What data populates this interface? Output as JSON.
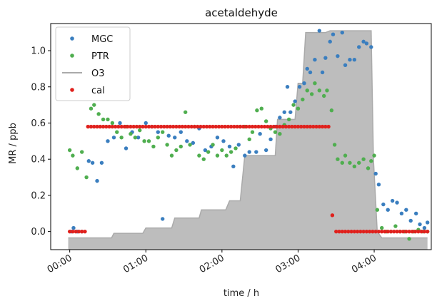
{
  "chart_data": {
    "type": "scatter",
    "title": "acetaldehyde",
    "xlabel": "time / h",
    "ylabel": "MR / ppb",
    "xlim": [
      -0.25,
      4.75
    ],
    "ylim": [
      -0.1,
      1.15
    ],
    "x_tick_values": [
      0,
      1,
      2,
      3,
      4
    ],
    "x_tick_labels": [
      "00:00",
      "01:00",
      "02:00",
      "03:00",
      "04:00"
    ],
    "y_tick_values": [
      0.0,
      0.2,
      0.4,
      0.6,
      0.8,
      1.0
    ],
    "y_tick_labels": [
      "0.0",
      "0.2",
      "0.4",
      "0.6",
      "0.8",
      "1.0"
    ],
    "legend_position": "upper-left",
    "series": [
      {
        "name": "MGC",
        "kind": "scatter",
        "color": "#3a7ebf",
        "points": [
          [
            0.02,
            0.0
          ],
          [
            0.05,
            0.02
          ],
          [
            0.1,
            0.0
          ],
          [
            0.16,
            0.0
          ],
          [
            0.25,
            0.39
          ],
          [
            0.3,
            0.38
          ],
          [
            0.36,
            0.28
          ],
          [
            0.42,
            0.38
          ],
          [
            0.5,
            0.5
          ],
          [
            0.58,
            0.52
          ],
          [
            0.66,
            0.6
          ],
          [
            0.74,
            0.46
          ],
          [
            0.82,
            0.55
          ],
          [
            0.9,
            0.52
          ],
          [
            1.0,
            0.6
          ],
          [
            1.08,
            0.58
          ],
          [
            1.16,
            0.55
          ],
          [
            1.22,
            0.07
          ],
          [
            1.3,
            0.53
          ],
          [
            1.38,
            0.52
          ],
          [
            1.46,
            0.55
          ],
          [
            1.54,
            0.5
          ],
          [
            1.62,
            0.49
          ],
          [
            1.7,
            0.57
          ],
          [
            1.78,
            0.45
          ],
          [
            1.86,
            0.47
          ],
          [
            1.94,
            0.52
          ],
          [
            2.02,
            0.5
          ],
          [
            2.1,
            0.47
          ],
          [
            2.15,
            0.36
          ],
          [
            2.22,
            0.48
          ],
          [
            2.3,
            0.42
          ],
          [
            2.36,
            0.44
          ],
          [
            2.45,
            0.44
          ],
          [
            2.5,
            0.54
          ],
          [
            2.58,
            0.45
          ],
          [
            2.64,
            0.51
          ],
          [
            2.7,
            0.58
          ],
          [
            2.76,
            0.63
          ],
          [
            2.82,
            0.66
          ],
          [
            2.86,
            0.8
          ],
          [
            2.9,
            0.66
          ],
          [
            2.96,
            0.72
          ],
          [
            3.02,
            0.8
          ],
          [
            3.08,
            0.82
          ],
          [
            3.12,
            0.9
          ],
          [
            3.16,
            0.88
          ],
          [
            3.22,
            0.95
          ],
          [
            3.28,
            1.11
          ],
          [
            3.32,
            0.88
          ],
          [
            3.36,
            0.96
          ],
          [
            3.42,
            1.05
          ],
          [
            3.46,
            1.09
          ],
          [
            3.52,
            0.97
          ],
          [
            3.58,
            1.1
          ],
          [
            3.62,
            0.92
          ],
          [
            3.68,
            0.95
          ],
          [
            3.74,
            0.95
          ],
          [
            3.8,
            1.02
          ],
          [
            3.86,
            1.05
          ],
          [
            3.9,
            1.04
          ],
          [
            3.96,
            1.02
          ],
          [
            4.02,
            0.32
          ],
          [
            4.06,
            0.26
          ],
          [
            4.12,
            0.15
          ],
          [
            4.18,
            0.12
          ],
          [
            4.24,
            0.17
          ],
          [
            4.3,
            0.16
          ],
          [
            4.36,
            0.1
          ],
          [
            4.42,
            0.12
          ],
          [
            4.48,
            0.06
          ],
          [
            4.55,
            0.1
          ],
          [
            4.6,
            0.04
          ],
          [
            4.66,
            0.02
          ],
          [
            4.7,
            0.05
          ]
        ]
      },
      {
        "name": "PTR",
        "kind": "scatter",
        "color": "#4fae4f",
        "points": [
          [
            0.0,
            0.45
          ],
          [
            0.04,
            0.42
          ],
          [
            0.1,
            0.35
          ],
          [
            0.16,
            0.44
          ],
          [
            0.22,
            0.3
          ],
          [
            0.28,
            0.68
          ],
          [
            0.32,
            0.7
          ],
          [
            0.38,
            0.65
          ],
          [
            0.44,
            0.62
          ],
          [
            0.5,
            0.62
          ],
          [
            0.56,
            0.6
          ],
          [
            0.62,
            0.55
          ],
          [
            0.68,
            0.52
          ],
          [
            0.74,
            0.58
          ],
          [
            0.8,
            0.54
          ],
          [
            0.86,
            0.52
          ],
          [
            0.92,
            0.56
          ],
          [
            0.98,
            0.5
          ],
          [
            1.04,
            0.5
          ],
          [
            1.1,
            0.47
          ],
          [
            1.16,
            0.52
          ],
          [
            1.22,
            0.55
          ],
          [
            1.28,
            0.48
          ],
          [
            1.34,
            0.42
          ],
          [
            1.4,
            0.45
          ],
          [
            1.46,
            0.47
          ],
          [
            1.52,
            0.66
          ],
          [
            1.58,
            0.48
          ],
          [
            1.64,
            0.58
          ],
          [
            1.7,
            0.42
          ],
          [
            1.76,
            0.4
          ],
          [
            1.82,
            0.44
          ],
          [
            1.88,
            0.48
          ],
          [
            1.94,
            0.42
          ],
          [
            2.0,
            0.45
          ],
          [
            2.06,
            0.42
          ],
          [
            2.12,
            0.44
          ],
          [
            2.18,
            0.46
          ],
          [
            2.24,
            0.58
          ],
          [
            2.3,
            0.58
          ],
          [
            2.36,
            0.51
          ],
          [
            2.4,
            0.55
          ],
          [
            2.46,
            0.67
          ],
          [
            2.52,
            0.68
          ],
          [
            2.58,
            0.61
          ],
          [
            2.64,
            0.57
          ],
          [
            2.7,
            0.55
          ],
          [
            2.76,
            0.54
          ],
          [
            2.82,
            0.59
          ],
          [
            2.88,
            0.62
          ],
          [
            2.94,
            0.7
          ],
          [
            3.0,
            0.68
          ],
          [
            3.06,
            0.73
          ],
          [
            3.12,
            0.78
          ],
          [
            3.18,
            0.76
          ],
          [
            3.22,
            0.82
          ],
          [
            3.28,
            0.78
          ],
          [
            3.34,
            0.75
          ],
          [
            3.38,
            0.78
          ],
          [
            3.44,
            0.67
          ],
          [
            3.48,
            0.48
          ],
          [
            3.52,
            0.4
          ],
          [
            3.58,
            0.38
          ],
          [
            3.62,
            0.42
          ],
          [
            3.68,
            0.38
          ],
          [
            3.74,
            0.36
          ],
          [
            3.8,
            0.38
          ],
          [
            3.86,
            0.4
          ],
          [
            3.92,
            0.35
          ],
          [
            3.96,
            0.39
          ],
          [
            4.0,
            0.42
          ],
          [
            4.04,
            0.12
          ],
          [
            4.1,
            0.02
          ],
          [
            4.16,
            0.0
          ],
          [
            4.22,
            0.0
          ],
          [
            4.28,
            0.03
          ],
          [
            4.34,
            0.0
          ],
          [
            4.4,
            0.0
          ],
          [
            4.46,
            -0.04
          ],
          [
            4.52,
            0.0
          ],
          [
            4.58,
            0.01
          ],
          [
            4.64,
            0.0
          ],
          [
            4.7,
            0.0
          ]
        ]
      },
      {
        "name": "O3",
        "kind": "area",
        "color": "#aaaaaa",
        "fill": "#bdbdbd",
        "steps": [
          [
            -0.02,
            -0.035
          ],
          [
            0.55,
            -0.035
          ],
          [
            0.58,
            -0.01
          ],
          [
            0.96,
            -0.01
          ],
          [
            1.0,
            0.02
          ],
          [
            1.34,
            0.02
          ],
          [
            1.38,
            0.075
          ],
          [
            1.7,
            0.075
          ],
          [
            1.73,
            0.12
          ],
          [
            2.05,
            0.12
          ],
          [
            2.1,
            0.17
          ],
          [
            2.24,
            0.17
          ],
          [
            2.3,
            0.42
          ],
          [
            2.7,
            0.42
          ],
          [
            2.73,
            0.62
          ],
          [
            2.96,
            0.62
          ],
          [
            3.0,
            0.82
          ],
          [
            3.06,
            0.82
          ],
          [
            3.1,
            1.1
          ],
          [
            3.36,
            1.1
          ],
          [
            3.42,
            1.11
          ],
          [
            3.96,
            1.11
          ],
          [
            3.99,
            0.4
          ],
          [
            4.04,
            0.0
          ],
          [
            4.1,
            -0.035
          ],
          [
            4.7,
            -0.035
          ]
        ]
      },
      {
        "name": "cal",
        "kind": "scatter",
        "color": "#e0201c",
        "points": [
          [
            0.0,
            0.0
          ],
          [
            0.04,
            0.0
          ],
          [
            0.08,
            0.0
          ],
          [
            0.12,
            0.0
          ],
          [
            0.16,
            0.0
          ],
          [
            0.2,
            0.0
          ],
          [
            0.24,
            0.58
          ],
          [
            0.28,
            0.58
          ],
          [
            0.32,
            0.58
          ],
          [
            0.36,
            0.58
          ],
          [
            0.4,
            0.58
          ],
          [
            0.44,
            0.58
          ],
          [
            0.48,
            0.58
          ],
          [
            0.52,
            0.58
          ],
          [
            0.56,
            0.58
          ],
          [
            0.6,
            0.58
          ],
          [
            0.64,
            0.58
          ],
          [
            0.68,
            0.58
          ],
          [
            0.72,
            0.58
          ],
          [
            0.76,
            0.58
          ],
          [
            0.8,
            0.58
          ],
          [
            0.84,
            0.58
          ],
          [
            0.88,
            0.58
          ],
          [
            0.92,
            0.58
          ],
          [
            0.96,
            0.58
          ],
          [
            1.0,
            0.58
          ],
          [
            1.04,
            0.58
          ],
          [
            1.08,
            0.58
          ],
          [
            1.12,
            0.58
          ],
          [
            1.16,
            0.58
          ],
          [
            1.2,
            0.58
          ],
          [
            1.24,
            0.58
          ],
          [
            1.28,
            0.58
          ],
          [
            1.32,
            0.58
          ],
          [
            1.36,
            0.58
          ],
          [
            1.4,
            0.58
          ],
          [
            1.44,
            0.58
          ],
          [
            1.48,
            0.58
          ],
          [
            1.52,
            0.58
          ],
          [
            1.56,
            0.58
          ],
          [
            1.6,
            0.58
          ],
          [
            1.64,
            0.58
          ],
          [
            1.68,
            0.58
          ],
          [
            1.72,
            0.58
          ],
          [
            1.76,
            0.58
          ],
          [
            1.8,
            0.58
          ],
          [
            1.84,
            0.58
          ],
          [
            1.88,
            0.58
          ],
          [
            1.92,
            0.58
          ],
          [
            1.96,
            0.58
          ],
          [
            2.0,
            0.58
          ],
          [
            2.04,
            0.58
          ],
          [
            2.08,
            0.58
          ],
          [
            2.12,
            0.58
          ],
          [
            2.16,
            0.58
          ],
          [
            2.2,
            0.58
          ],
          [
            2.24,
            0.58
          ],
          [
            2.28,
            0.58
          ],
          [
            2.32,
            0.58
          ],
          [
            2.36,
            0.58
          ],
          [
            2.4,
            0.58
          ],
          [
            2.44,
            0.58
          ],
          [
            2.48,
            0.58
          ],
          [
            2.52,
            0.58
          ],
          [
            2.56,
            0.58
          ],
          [
            2.6,
            0.58
          ],
          [
            2.64,
            0.58
          ],
          [
            2.68,
            0.58
          ],
          [
            2.72,
            0.58
          ],
          [
            2.76,
            0.58
          ],
          [
            2.8,
            0.58
          ],
          [
            2.84,
            0.58
          ],
          [
            2.88,
            0.58
          ],
          [
            2.92,
            0.58
          ],
          [
            2.96,
            0.58
          ],
          [
            3.0,
            0.58
          ],
          [
            3.04,
            0.58
          ],
          [
            3.08,
            0.58
          ],
          [
            3.12,
            0.58
          ],
          [
            3.16,
            0.58
          ],
          [
            3.2,
            0.58
          ],
          [
            3.24,
            0.58
          ],
          [
            3.28,
            0.58
          ],
          [
            3.32,
            0.58
          ],
          [
            3.36,
            0.58
          ],
          [
            3.4,
            0.58
          ],
          [
            3.45,
            0.09
          ],
          [
            3.5,
            0.0
          ],
          [
            3.54,
            0.0
          ],
          [
            3.58,
            0.0
          ],
          [
            3.62,
            0.0
          ],
          [
            3.66,
            0.0
          ],
          [
            3.7,
            0.0
          ],
          [
            3.74,
            0.0
          ],
          [
            3.78,
            0.0
          ],
          [
            3.82,
            0.0
          ],
          [
            3.86,
            0.0
          ],
          [
            3.9,
            0.0
          ],
          [
            3.94,
            0.0
          ],
          [
            3.98,
            0.0
          ],
          [
            4.02,
            0.0
          ],
          [
            4.06,
            0.0
          ],
          [
            4.1,
            0.0
          ],
          [
            4.14,
            0.0
          ],
          [
            4.18,
            0.0
          ],
          [
            4.22,
            0.0
          ],
          [
            4.26,
            0.0
          ],
          [
            4.3,
            0.0
          ],
          [
            4.34,
            0.0
          ],
          [
            4.38,
            0.0
          ],
          [
            4.42,
            0.0
          ],
          [
            4.46,
            0.0
          ],
          [
            4.5,
            0.0
          ],
          [
            4.54,
            0.0
          ],
          [
            4.58,
            0.0
          ],
          [
            4.62,
            0.0
          ],
          [
            4.66,
            0.0
          ],
          [
            4.7,
            0.0
          ]
        ]
      }
    ]
  }
}
